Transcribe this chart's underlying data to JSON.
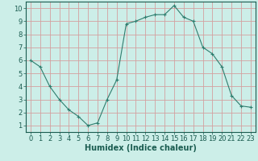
{
  "x": [
    0,
    1,
    2,
    3,
    4,
    5,
    6,
    7,
    8,
    9,
    10,
    11,
    12,
    13,
    14,
    15,
    16,
    17,
    18,
    19,
    20,
    21,
    22,
    23
  ],
  "y": [
    6.0,
    5.5,
    4.0,
    3.0,
    2.2,
    1.7,
    1.0,
    1.2,
    3.0,
    4.5,
    8.8,
    9.0,
    9.3,
    9.5,
    9.5,
    10.2,
    9.3,
    9.0,
    7.0,
    6.5,
    5.5,
    3.3,
    2.5,
    2.4
  ],
  "line_color": "#2e7d6e",
  "marker": "+",
  "bg_color": "#cceee8",
  "grid_color": "#d4a0a0",
  "xlabel": "Humidex (Indice chaleur)",
  "xlabel_fontsize": 7,
  "tick_fontsize": 6,
  "xlim": [
    -0.5,
    23.5
  ],
  "ylim": [
    0.5,
    10.5
  ],
  "yticks": [
    1,
    2,
    3,
    4,
    5,
    6,
    7,
    8,
    9,
    10
  ],
  "xticks": [
    0,
    1,
    2,
    3,
    4,
    5,
    6,
    7,
    8,
    9,
    10,
    11,
    12,
    13,
    14,
    15,
    16,
    17,
    18,
    19,
    20,
    21,
    22,
    23
  ]
}
